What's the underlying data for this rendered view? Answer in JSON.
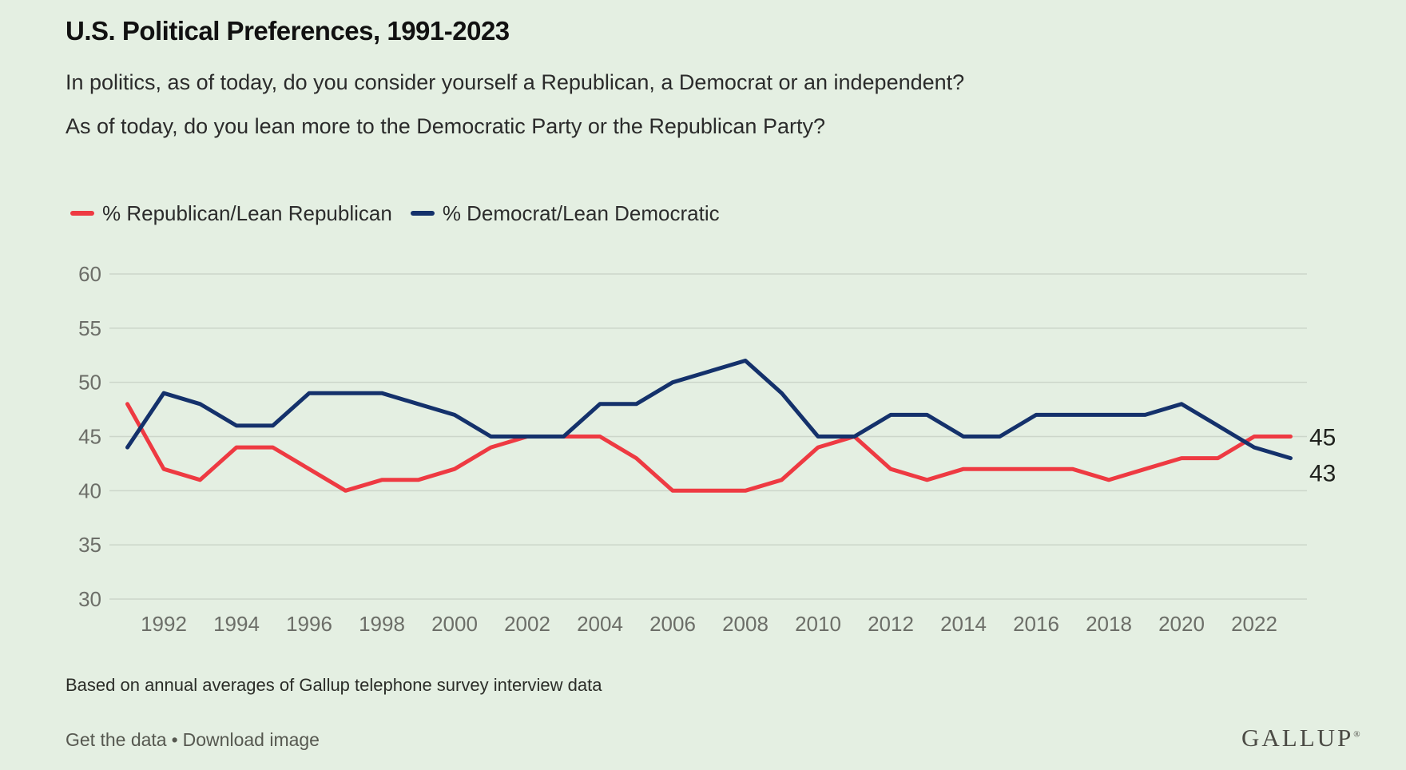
{
  "page": {
    "background": "#e4efe2",
    "subtitle_line1": "In politics, as of today, do you consider yourself a Republican, a Democrat or an independent?",
    "subtitle_line2": "As of today, do you lean more to the Democratic Party or the Republican Party?",
    "footnote": "Based on annual averages of Gallup telephone survey interview data",
    "footer": {
      "link1": "Get the data",
      "separator": "•",
      "link2": "Download image"
    },
    "logo_text": "GALLUP",
    "logo_mark": "®"
  },
  "chart_data": {
    "type": "line",
    "title": "U.S. Political Preferences, 1991-2023",
    "xlabel": "",
    "ylabel": "",
    "x": [
      1991,
      1992,
      1993,
      1994,
      1995,
      1996,
      1997,
      1998,
      1999,
      2000,
      2001,
      2002,
      2003,
      2004,
      2005,
      2006,
      2007,
      2008,
      2009,
      2010,
      2011,
      2012,
      2013,
      2014,
      2015,
      2016,
      2017,
      2018,
      2019,
      2020,
      2021,
      2022,
      2023
    ],
    "x_tick_labels": [
      "1992",
      "1994",
      "1996",
      "1998",
      "2000",
      "2002",
      "2004",
      "2006",
      "2008",
      "2010",
      "2012",
      "2014",
      "2016",
      "2018",
      "2020",
      "2022"
    ],
    "ylim": [
      30,
      60
    ],
    "y_ticks": [
      30,
      35,
      40,
      45,
      50,
      55,
      60
    ],
    "grid": "horizontal",
    "legend_position": "top-left",
    "series": [
      {
        "key": "republican",
        "name": "% Republican/Lean Republican",
        "color": "#ee3a42",
        "end_label": "45",
        "values": [
          48,
          42,
          41,
          44,
          44,
          42,
          40,
          41,
          41,
          42,
          44,
          45,
          45,
          45,
          43,
          40,
          40,
          40,
          41,
          44,
          45,
          42,
          41,
          42,
          42,
          42,
          42,
          41,
          42,
          43,
          43,
          45,
          45
        ]
      },
      {
        "key": "democratic",
        "name": "% Democrat/Lean Democratic",
        "color": "#14316b",
        "end_label": "43",
        "values": [
          44,
          49,
          48,
          46,
          46,
          49,
          49,
          49,
          48,
          47,
          45,
          45,
          45,
          48,
          48,
          50,
          51,
          52,
          49,
          45,
          45,
          47,
          47,
          45,
          45,
          47,
          47,
          47,
          47,
          48,
          46,
          44,
          43
        ]
      }
    ]
  }
}
